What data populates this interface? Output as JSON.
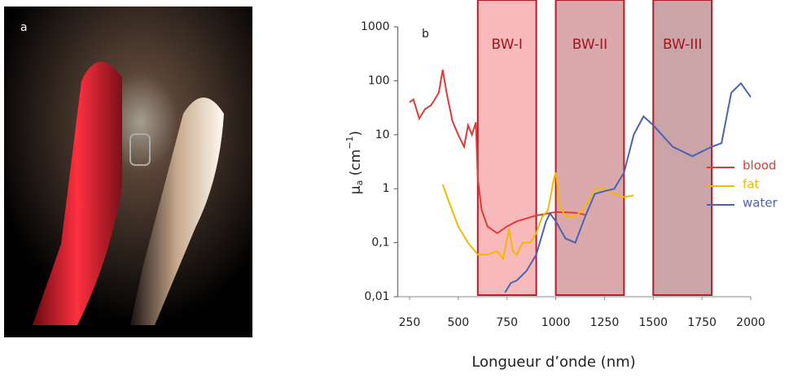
{
  "panel_a": {
    "label": "a"
  },
  "chart_data": {
    "type": "line",
    "panel_label": "b",
    "x_label": "Longueur d’onde (nm)",
    "y_label_parts": [
      "μ",
      "a",
      " (cm",
      "−1",
      ")"
    ],
    "xlim": [
      190,
      2000
    ],
    "xticks": [
      250,
      500,
      750,
      1000,
      1250,
      1500,
      1750,
      2000
    ],
    "ylim": [
      0.01,
      1000
    ],
    "y_log": true,
    "yticks": [
      {
        "value": 0.01,
        "label": "0,01"
      },
      {
        "value": 0.1,
        "label": "0,1"
      },
      1,
      10,
      100,
      1000
    ],
    "bands": [
      {
        "name": "BW-I",
        "start": 600,
        "end": 900,
        "color": "#f8b9bb"
      },
      {
        "name": "BW-II",
        "start": 1000,
        "end": 1350,
        "color": "#dba9ac"
      },
      {
        "name": "BW-III",
        "start": 1500,
        "end": 1800,
        "color": "#cba4a8"
      }
    ],
    "series": [
      {
        "name": "blood",
        "color": "#e03a34",
        "x": [
          250,
          270,
          300,
          330,
          360,
          400,
          420,
          440,
          470,
          500,
          530,
          550,
          570,
          590,
          600,
          620,
          650,
          700,
          750,
          800,
          900,
          1000,
          1100,
          1150
        ],
        "values": [
          40,
          45,
          20,
          30,
          35,
          60,
          160,
          60,
          18,
          10,
          6,
          15,
          10,
          17,
          1.5,
          0.4,
          0.2,
          0.15,
          0.2,
          0.25,
          0.32,
          0.37,
          0.36,
          0.33
        ]
      },
      {
        "name": "fat",
        "color": "#f5b800",
        "x": [
          420,
          450,
          500,
          550,
          600,
          650,
          700,
          730,
          760,
          780,
          800,
          830,
          870,
          900,
          930,
          960,
          990,
          1000,
          1020,
          1050,
          1100,
          1150,
          1200,
          1250,
          1300,
          1350,
          1400
        ],
        "values": [
          1.2,
          0.6,
          0.2,
          0.1,
          0.06,
          0.06,
          0.07,
          0.05,
          0.18,
          0.07,
          0.06,
          0.1,
          0.1,
          0.15,
          0.3,
          0.4,
          1.5,
          2,
          0.5,
          0.3,
          0.3,
          0.45,
          1.0,
          1.0,
          0.8,
          0.7,
          0.75
        ]
      },
      {
        "name": "water",
        "color": "#4a63b5",
        "x": [
          740,
          770,
          800,
          850,
          900,
          950,
          970,
          1000,
          1050,
          1100,
          1150,
          1200,
          1250,
          1300,
          1350,
          1400,
          1450,
          1500,
          1600,
          1700,
          1800,
          1850,
          1900,
          1950,
          2000
        ],
        "values": [
          0.012,
          0.018,
          0.02,
          0.03,
          0.06,
          0.25,
          0.35,
          0.25,
          0.12,
          0.1,
          0.3,
          0.8,
          0.9,
          1.0,
          2,
          10,
          22,
          15,
          6,
          4,
          6,
          7,
          60,
          90,
          50
        ]
      }
    ]
  }
}
